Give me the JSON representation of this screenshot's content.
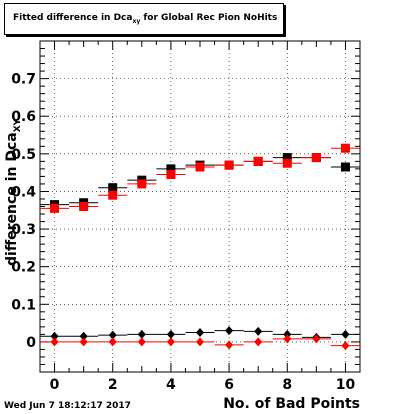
{
  "title": {
    "prefix": "Fitted difference in Dca",
    "subscript": "xy",
    "suffix": " for Global Rec Pion NoHits"
  },
  "ylabel": {
    "main": "difference in Dca",
    "subscript": "XY"
  },
  "xlabel": "No. of Bad Points",
  "timestamp": "Wed Jun  7 18:12:17 2017",
  "chart_data": {
    "type": "scatter",
    "title": "Fitted difference in Dca_xy for Global Rec Pion NoHits",
    "xlabel": "No. of Bad Points",
    "ylabel": "difference in Dca_XY",
    "xlim": [
      -0.5,
      10.5
    ],
    "ylim": [
      -0.08,
      0.8
    ],
    "grid": true,
    "legend": "none",
    "x_ticks": [
      0,
      2,
      4,
      6,
      8,
      10
    ],
    "y_ticks": [
      0,
      0.1,
      0.2,
      0.3,
      0.4,
      0.5,
      0.6,
      0.7
    ],
    "y_tick_labels": [
      "0",
      "0.1",
      "0.2",
      "0.3",
      "0.4",
      "0.5",
      "0.6",
      "0.7"
    ],
    "series": [
      {
        "marker": "square",
        "color": "#000000",
        "x": [
          0,
          1,
          2,
          3,
          4,
          5,
          6,
          7,
          8,
          9,
          10
        ],
        "y": [
          0.365,
          0.37,
          0.41,
          0.43,
          0.46,
          0.47,
          0.47,
          0.48,
          0.49,
          0.49,
          0.465
        ]
      },
      {
        "marker": "square",
        "color": "#ff0000",
        "x": [
          0,
          1,
          2,
          3,
          4,
          5,
          6,
          7,
          8,
          9,
          10
        ],
        "y": [
          0.355,
          0.36,
          0.39,
          0.42,
          0.445,
          0.465,
          0.47,
          0.48,
          0.475,
          0.49,
          0.515
        ]
      },
      {
        "marker": "diamond",
        "color": "#000000",
        "x": [
          0,
          1,
          2,
          3,
          4,
          5,
          6,
          7,
          8,
          9,
          10
        ],
        "y": [
          0.015,
          0.015,
          0.018,
          0.02,
          0.02,
          0.025,
          0.03,
          0.028,
          0.02,
          0.012,
          0.02
        ]
      },
      {
        "marker": "diamond",
        "color": "#ff0000",
        "x": [
          0,
          1,
          2,
          3,
          4,
          5,
          6,
          7,
          8,
          9,
          10
        ],
        "y": [
          0.0,
          0.0,
          0.0,
          0.0,
          0.0,
          0.0,
          -0.008,
          0.0,
          0.008,
          0.008,
          -0.01
        ]
      }
    ]
  }
}
